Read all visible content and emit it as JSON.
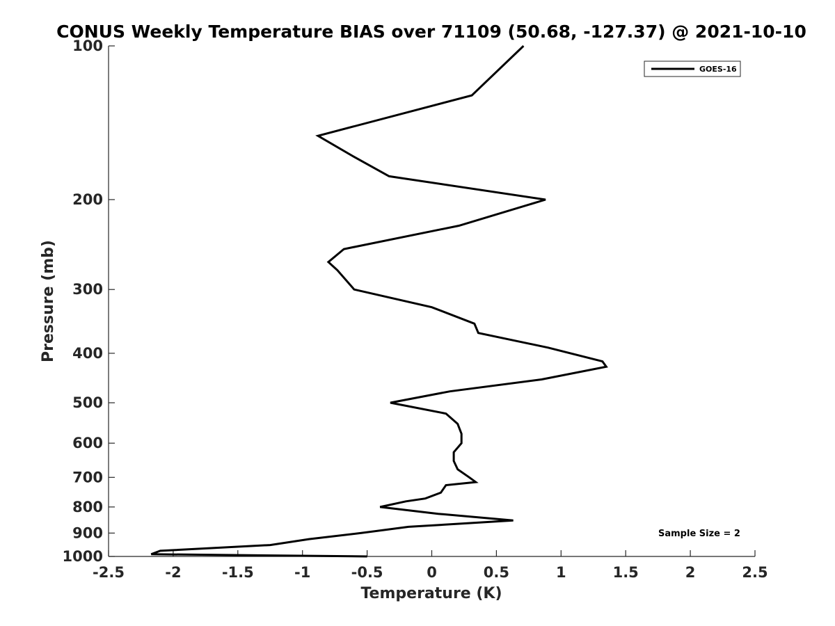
{
  "chart_data": {
    "type": "line",
    "title": "CONUS Weekly Temperature BIAS over 71109 (50.68, -127.37) @ 2021-10-10",
    "xlabel": "Temperature (K)",
    "ylabel": "Pressure (mb)",
    "xlim": [
      -2.5,
      2.5
    ],
    "ylim": [
      100,
      1000
    ],
    "y_scale": "log",
    "y_reversed": true,
    "x_ticks": [
      -2.5,
      -2,
      -1.5,
      -1,
      -0.5,
      0,
      0.5,
      1,
      1.5,
      2,
      2.5
    ],
    "x_tick_labels": [
      "-2.5",
      "-2",
      "-1.5",
      "-1",
      "-0.5",
      "0",
      "0.5",
      "1",
      "1.5",
      "2",
      "2.5"
    ],
    "y_ticks": [
      100,
      200,
      300,
      400,
      500,
      600,
      700,
      800,
      900,
      1000
    ],
    "y_tick_labels": [
      "100",
      "200",
      "300",
      "400",
      "500",
      "600",
      "700",
      "800",
      "900",
      "1000"
    ],
    "grid": false,
    "legend_position": "top-right",
    "annotation": "Sample Size = 2",
    "series": [
      {
        "name": "GOES-16",
        "color": "#000000",
        "points": [
          [
            0.71,
            100
          ],
          [
            0.31,
            125
          ],
          [
            -0.88,
            150
          ],
          [
            -0.6,
            165
          ],
          [
            -0.33,
            180
          ],
          [
            0.88,
            200
          ],
          [
            0.21,
            225
          ],
          [
            -0.68,
            250
          ],
          [
            -0.8,
            265
          ],
          [
            -0.73,
            275
          ],
          [
            -0.6,
            300
          ],
          [
            0.0,
            325
          ],
          [
            0.33,
            350
          ],
          [
            0.36,
            365
          ],
          [
            0.9,
            390
          ],
          [
            1.32,
            415
          ],
          [
            1.35,
            425
          ],
          [
            0.85,
            450
          ],
          [
            0.14,
            475
          ],
          [
            -0.32,
            500
          ],
          [
            0.11,
            525
          ],
          [
            0.2,
            550
          ],
          [
            0.23,
            575
          ],
          [
            0.23,
            600
          ],
          [
            0.17,
            625
          ],
          [
            0.17,
            650
          ],
          [
            0.2,
            675
          ],
          [
            0.29,
            700
          ],
          [
            0.34,
            715
          ],
          [
            0.11,
            725
          ],
          [
            0.07,
            750
          ],
          [
            -0.05,
            770
          ],
          [
            -0.2,
            780
          ],
          [
            -0.4,
            800
          ],
          [
            0.05,
            825
          ],
          [
            0.63,
            850
          ],
          [
            0.31,
            860
          ],
          [
            -0.18,
            875
          ],
          [
            -0.55,
            900
          ],
          [
            -0.95,
            925
          ],
          [
            -1.25,
            950
          ],
          [
            -2.1,
            975
          ],
          [
            -2.17,
            990
          ],
          [
            -0.5,
            1000
          ]
        ]
      }
    ]
  }
}
